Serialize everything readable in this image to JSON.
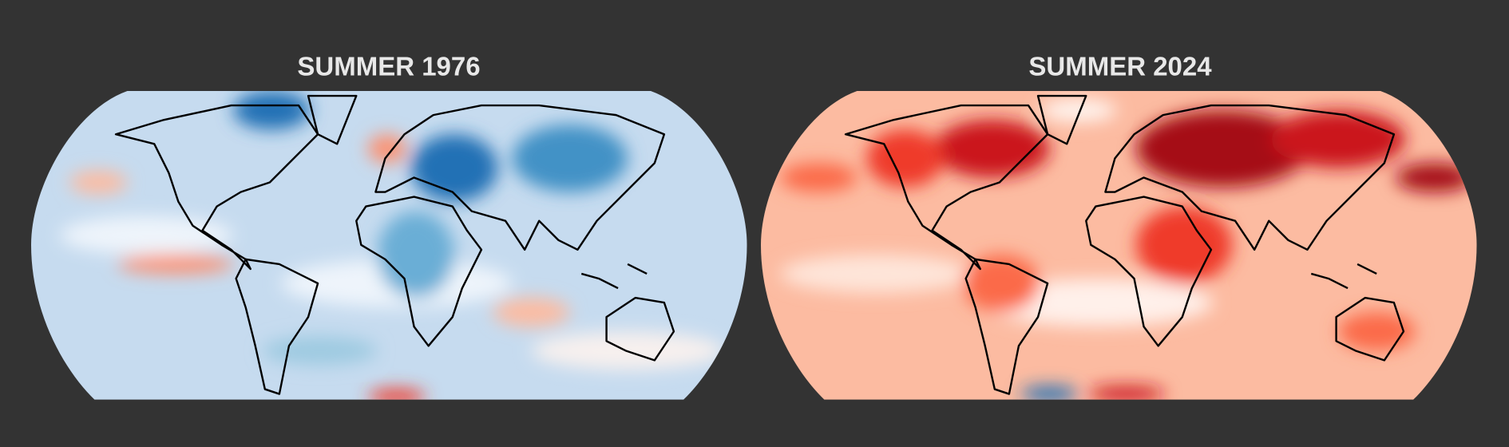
{
  "panels": [
    {
      "title": "SUMMER 1976"
    },
    {
      "title": "SUMMER 2024"
    }
  ]
}
